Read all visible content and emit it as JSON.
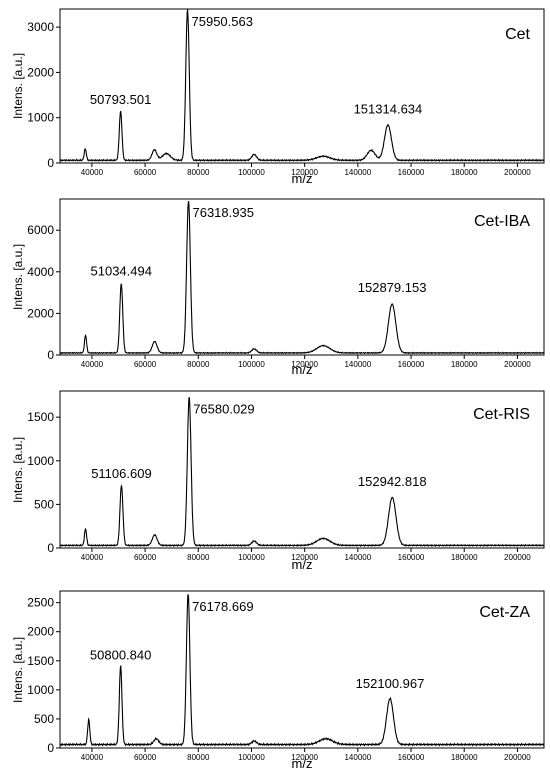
{
  "chart_data": [
    {
      "type": "line",
      "title": "Cet",
      "xlabel": "m/z",
      "ylabel": "Intens. [a.u.]",
      "xlim": [
        28000,
        210000
      ],
      "ylim": [
        0,
        3400
      ],
      "x_ticks": [
        "40000",
        "60000",
        "80000",
        "100000",
        "120000",
        "140000",
        "160000",
        "180000",
        "200000"
      ],
      "y_ticks": [
        "0",
        "1000",
        "2000",
        "3000"
      ],
      "baseline": 60,
      "peaks": [
        {
          "x": 37500,
          "y": 250,
          "w": 400
        },
        {
          "x": 50793.501,
          "y": 1080,
          "w": 500
        },
        {
          "x": 63500,
          "y": 230,
          "w": 900
        },
        {
          "x": 68000,
          "y": 150,
          "w": 1500
        },
        {
          "x": 75950.563,
          "y": 3330,
          "w": 650
        },
        {
          "x": 101000,
          "y": 130,
          "w": 900
        },
        {
          "x": 127000,
          "y": 90,
          "w": 2500
        },
        {
          "x": 145000,
          "y": 220,
          "w": 1500
        },
        {
          "x": 151314.634,
          "y": 780,
          "w": 1300
        }
      ],
      "annotations": [
        {
          "label": "50793.501",
          "x": 50793.501,
          "y": 1080
        },
        {
          "label": "75950.563",
          "x": 75950.563,
          "y": 3330
        },
        {
          "label": "151314.634",
          "x": 151314.634,
          "y": 780
        }
      ]
    },
    {
      "type": "line",
      "title": "Cet-IBA",
      "xlabel": "m/z",
      "ylabel": "Intens. [a.u.]",
      "xlim": [
        28000,
        210000
      ],
      "ylim": [
        0,
        7500
      ],
      "x_ticks": [
        "40000",
        "60000",
        "80000",
        "100000",
        "120000",
        "140000",
        "160000",
        "180000",
        "200000"
      ],
      "y_ticks": [
        "0",
        "2000",
        "4000",
        "6000"
      ],
      "baseline": 100,
      "peaks": [
        {
          "x": 37600,
          "y": 850,
          "w": 400
        },
        {
          "x": 51034.494,
          "y": 3350,
          "w": 550
        },
        {
          "x": 63600,
          "y": 550,
          "w": 900
        },
        {
          "x": 76318.935,
          "y": 7300,
          "w": 700
        },
        {
          "x": 101000,
          "y": 200,
          "w": 900
        },
        {
          "x": 127000,
          "y": 350,
          "w": 2500
        },
        {
          "x": 152879.153,
          "y": 2350,
          "w": 1400
        }
      ],
      "annotations": [
        {
          "label": "51034.494",
          "x": 51034.494,
          "y": 3350
        },
        {
          "label": "76318.935",
          "x": 76318.935,
          "y": 7300
        },
        {
          "label": "152879.153",
          "x": 152879.153,
          "y": 2350
        }
      ]
    },
    {
      "type": "line",
      "title": "Cet-RIS",
      "xlabel": "m/z",
      "ylabel": "Intens. [a.u.]",
      "xlim": [
        28000,
        210000
      ],
      "ylim": [
        0,
        1800
      ],
      "x_ticks": [
        "40000",
        "60000",
        "80000",
        "100000",
        "120000",
        "140000",
        "160000",
        "180000",
        "200000"
      ],
      "y_ticks": [
        "0",
        "500",
        "1000",
        "1500"
      ],
      "baseline": 30,
      "peaks": [
        {
          "x": 37600,
          "y": 190,
          "w": 400
        },
        {
          "x": 51106.609,
          "y": 690,
          "w": 550
        },
        {
          "x": 63600,
          "y": 120,
          "w": 900
        },
        {
          "x": 76580.029,
          "y": 1700,
          "w": 700
        },
        {
          "x": 101000,
          "y": 50,
          "w": 900
        },
        {
          "x": 127000,
          "y": 80,
          "w": 2500
        },
        {
          "x": 152942.818,
          "y": 550,
          "w": 1400
        }
      ],
      "annotations": [
        {
          "label": "51106.609",
          "x": 51106.609,
          "y": 690
        },
        {
          "label": "76580.029",
          "x": 76580.029,
          "y": 1700
        },
        {
          "label": "152942.818",
          "x": 152942.818,
          "y": 550
        }
      ]
    },
    {
      "type": "line",
      "title": "Cet-ZA",
      "xlabel": "m/z",
      "ylabel": "Intens. [a.u.]",
      "xlim": [
        28000,
        210000
      ],
      "ylim": [
        0,
        2700
      ],
      "x_ticks": [
        "40000",
        "60000",
        "80000",
        "100000",
        "120000",
        "140000",
        "160000",
        "180000",
        "200000"
      ],
      "y_ticks": [
        "0",
        "500",
        "1000",
        "1500",
        "2000",
        "2500"
      ],
      "baseline": 60,
      "peaks": [
        {
          "x": 38800,
          "y": 430,
          "w": 400
        },
        {
          "x": 50800.84,
          "y": 1350,
          "w": 500
        },
        {
          "x": 64200,
          "y": 100,
          "w": 900
        },
        {
          "x": 76178.669,
          "y": 2600,
          "w": 650
        },
        {
          "x": 101000,
          "y": 60,
          "w": 900
        },
        {
          "x": 128000,
          "y": 100,
          "w": 2500
        },
        {
          "x": 152100.967,
          "y": 790,
          "w": 1300
        }
      ],
      "annotations": [
        {
          "label": "50800.840",
          "x": 50800.84,
          "y": 1350
        },
        {
          "label": "76178.669",
          "x": 76178.669,
          "y": 2600
        },
        {
          "label": "152100.967",
          "x": 152100.967,
          "y": 790
        }
      ]
    }
  ]
}
